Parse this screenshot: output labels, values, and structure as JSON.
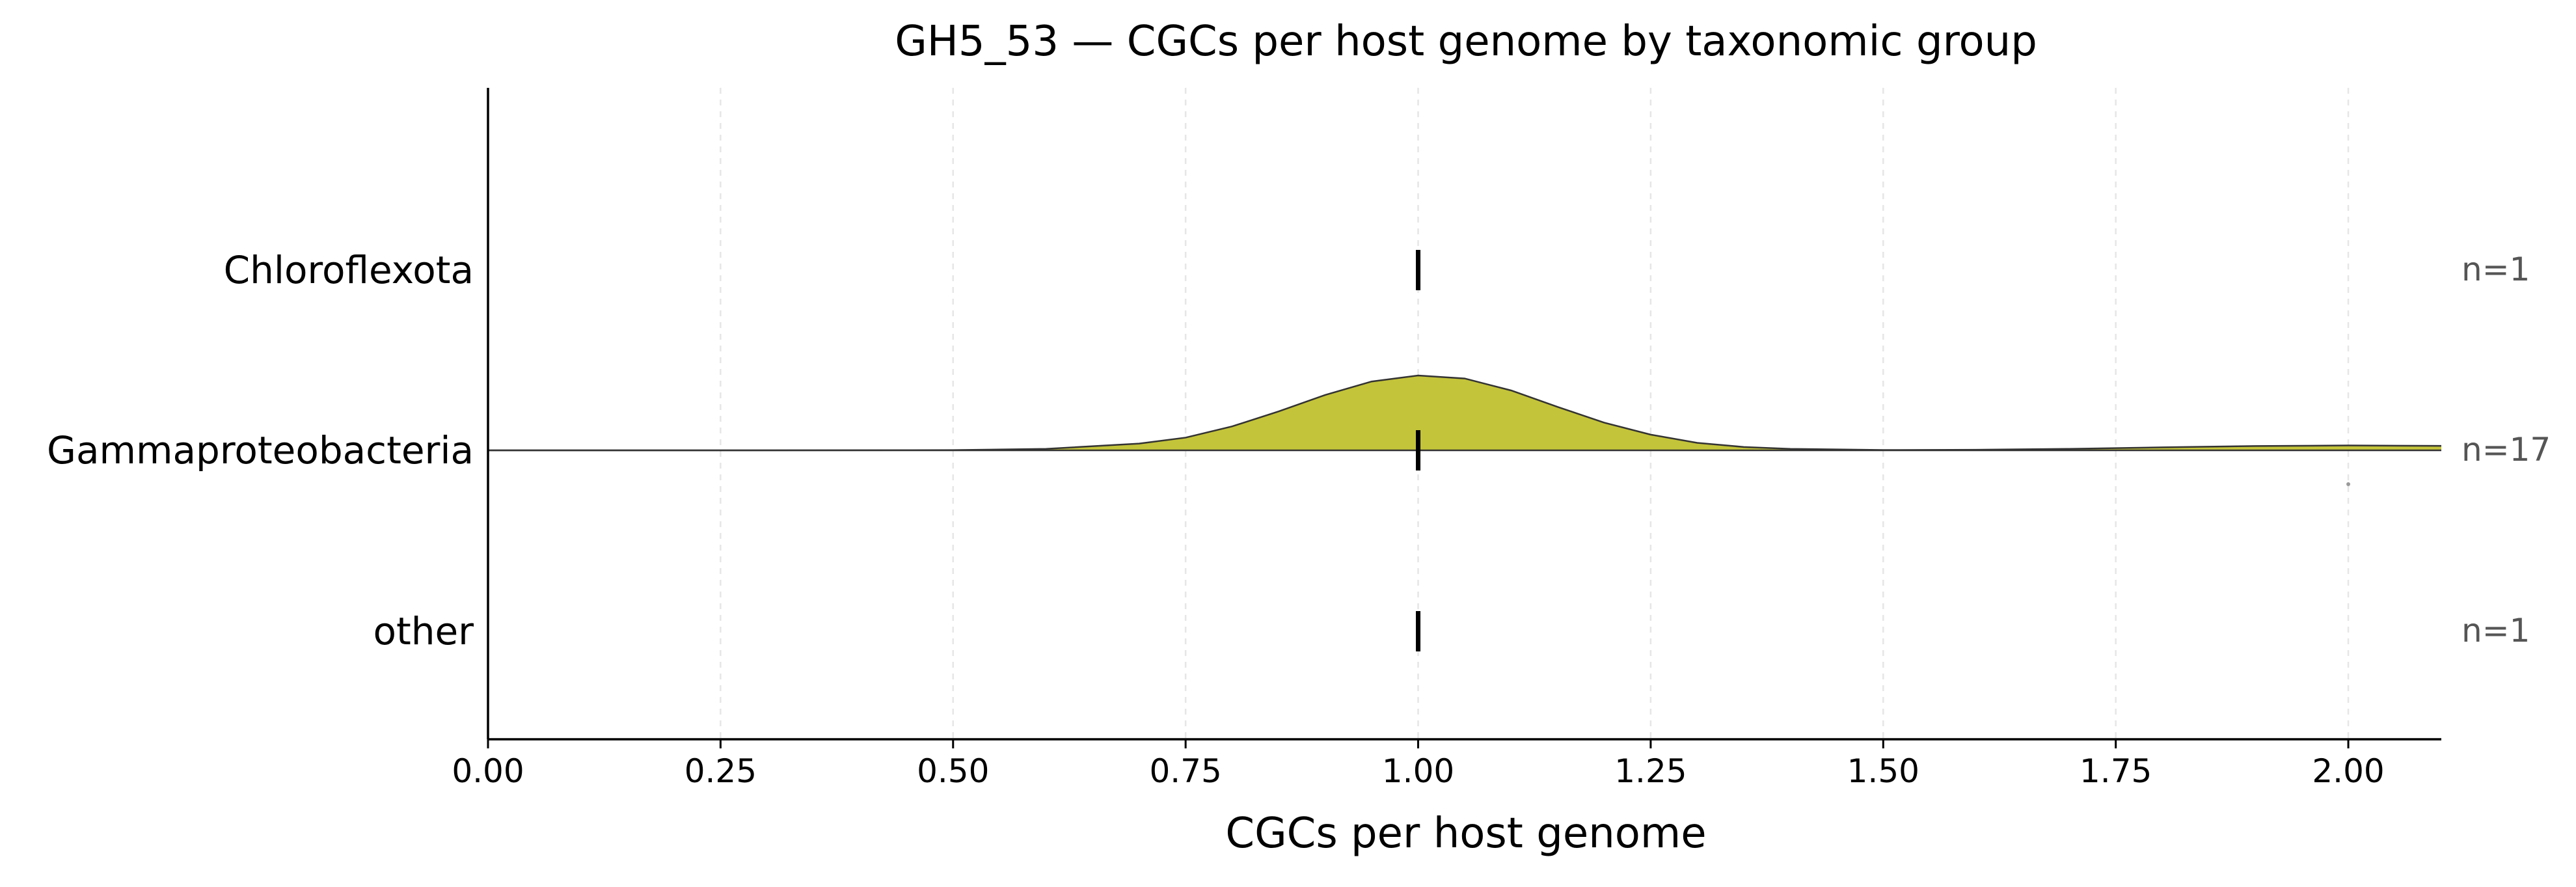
{
  "chart_data": {
    "type": "ridgeline",
    "title": "GH5_53 — CGCs per host genome by taxonomic group",
    "xlabel": "CGCs per host genome",
    "ylabel": "",
    "xlim": [
      0,
      2.1
    ],
    "xticks": [
      "0.00",
      "0.25",
      "0.50",
      "0.75",
      "1.00",
      "1.25",
      "1.50",
      "1.75",
      "2.00"
    ],
    "xtick_values": [
      0,
      0.25,
      0.5,
      0.75,
      1.0,
      1.25,
      1.5,
      1.75,
      2.0
    ],
    "grid": "vertical dashed",
    "groups": [
      {
        "name": "Chloroflexota",
        "n_label": "n=1",
        "median": 1.0,
        "points": [
          1
        ],
        "density": null
      },
      {
        "name": "Gammaproteobacteria",
        "n_label": "n=17",
        "median": 1.0,
        "points": [
          1,
          1,
          1,
          1,
          1,
          1,
          1,
          1,
          1,
          1,
          1,
          1,
          1,
          1,
          1,
          1,
          2
        ],
        "density": {
          "x": [
            0.0,
            0.25,
            0.5,
            0.6,
            0.7,
            0.75,
            0.8,
            0.85,
            0.9,
            0.95,
            1.0,
            1.05,
            1.1,
            1.15,
            1.2,
            1.25,
            1.3,
            1.35,
            1.4,
            1.5,
            1.6,
            1.7,
            1.8,
            1.9,
            2.0,
            2.1
          ],
          "y": [
            0.0,
            0.0,
            0.003,
            0.02,
            0.09,
            0.17,
            0.32,
            0.52,
            0.74,
            0.92,
            1.0,
            0.96,
            0.8,
            0.58,
            0.37,
            0.21,
            0.1,
            0.045,
            0.02,
            0.004,
            0.008,
            0.02,
            0.04,
            0.058,
            0.065,
            0.06
          ]
        },
        "color": "#c4c43a"
      },
      {
        "name": "other",
        "n_label": "n=1",
        "median": 1.0,
        "points": [
          1
        ],
        "density": null
      }
    ]
  }
}
